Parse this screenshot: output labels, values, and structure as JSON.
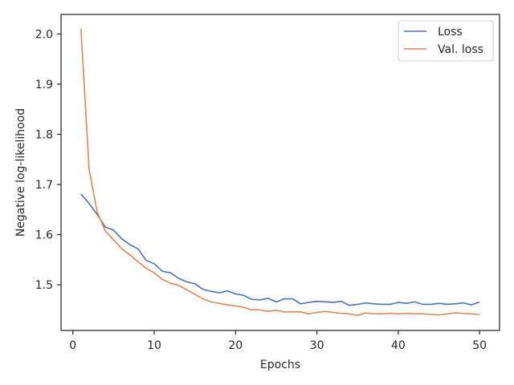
{
  "chart_data": {
    "type": "line",
    "xlabel": "Epochs",
    "ylabel": "Negative log-likelihood",
    "xlim": [
      -1.45,
      52.45
    ],
    "ylim": [
      1.409,
      2.039
    ],
    "xticks": [
      0,
      10,
      20,
      30,
      40,
      50
    ],
    "yticks": [
      1.5,
      1.6,
      1.7,
      1.8,
      1.9,
      2.0
    ],
    "ytick_labels": [
      "1.5",
      "1.6",
      "1.7",
      "1.8",
      "1.9",
      "2.0"
    ],
    "legend_position": "top-right",
    "x": [
      1,
      2,
      3,
      4,
      5,
      6,
      7,
      8,
      9,
      10,
      11,
      12,
      13,
      14,
      15,
      16,
      17,
      18,
      19,
      20,
      21,
      22,
      23,
      24,
      25,
      26,
      27,
      28,
      29,
      30,
      31,
      32,
      33,
      34,
      35,
      36,
      37,
      38,
      39,
      40,
      41,
      42,
      43,
      44,
      45,
      46,
      47,
      48,
      49,
      50
    ],
    "series": [
      {
        "name": "Loss",
        "color": "#4c72b0",
        "values": [
          1.681,
          1.662,
          1.64,
          1.615,
          1.609,
          1.592,
          1.58,
          1.572,
          1.549,
          1.542,
          1.527,
          1.524,
          1.513,
          1.506,
          1.502,
          1.491,
          1.487,
          1.484,
          1.488,
          1.482,
          1.479,
          1.471,
          1.47,
          1.473,
          1.466,
          1.472,
          1.472,
          1.462,
          1.465,
          1.467,
          1.466,
          1.465,
          1.467,
          1.459,
          1.461,
          1.464,
          1.462,
          1.461,
          1.461,
          1.465,
          1.463,
          1.466,
          1.461,
          1.461,
          1.463,
          1.461,
          1.462,
          1.464,
          1.46,
          1.466
        ]
      },
      {
        "name": "Val. loss",
        "color": "#dd8452",
        "values": [
          2.01,
          1.73,
          1.645,
          1.607,
          1.59,
          1.572,
          1.56,
          1.546,
          1.533,
          1.524,
          1.511,
          1.503,
          1.499,
          1.49,
          1.481,
          1.472,
          1.466,
          1.463,
          1.46,
          1.458,
          1.455,
          1.45,
          1.45,
          1.447,
          1.449,
          1.446,
          1.446,
          1.446,
          1.442,
          1.445,
          1.447,
          1.445,
          1.443,
          1.442,
          1.439,
          1.444,
          1.442,
          1.442,
          1.443,
          1.442,
          1.443,
          1.442,
          1.442,
          1.441,
          1.44,
          1.442,
          1.444,
          1.443,
          1.442,
          1.441
        ]
      }
    ]
  }
}
